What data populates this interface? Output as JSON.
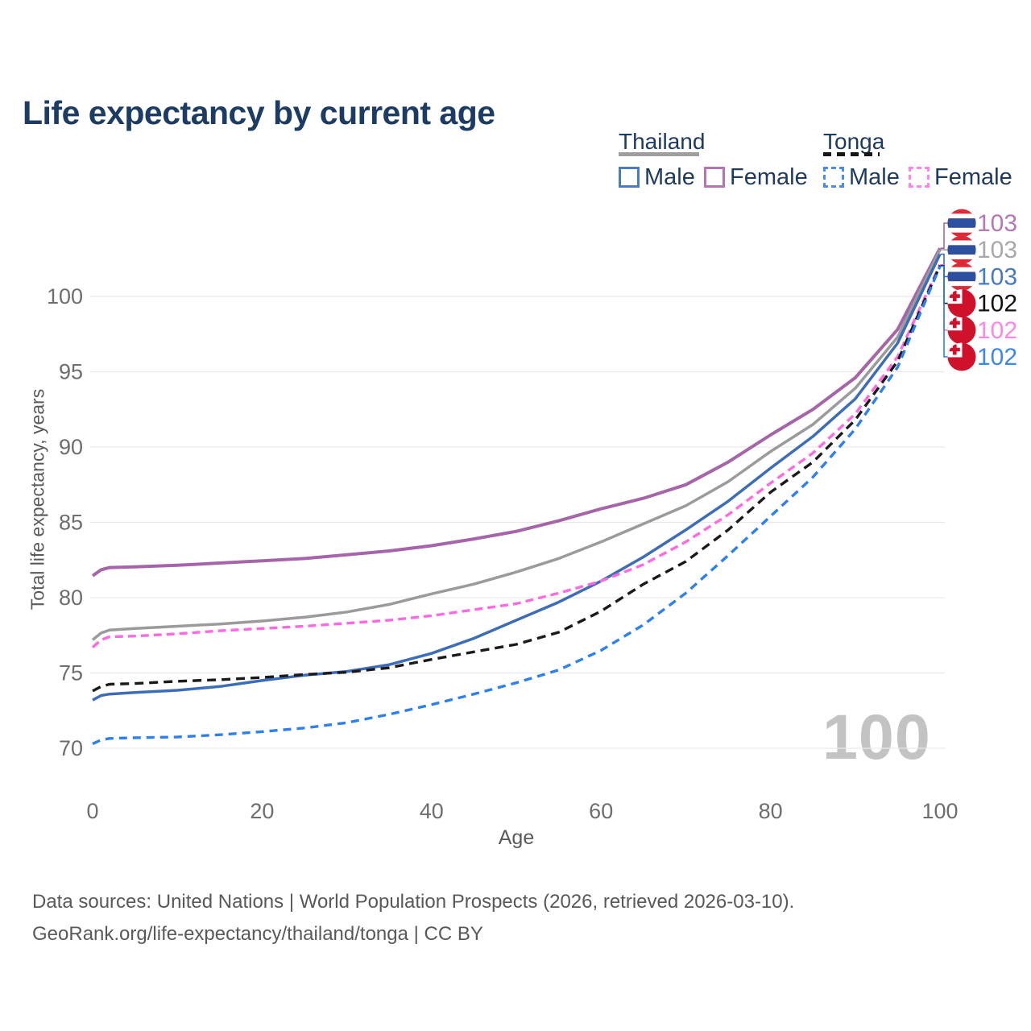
{
  "title": "Life expectancy by current age",
  "legend": {
    "thailand": {
      "label": "Thailand",
      "male": "Male",
      "female": "Female"
    },
    "tonga": {
      "label": "Tonga",
      "male": "Male",
      "female": "Female"
    }
  },
  "watermark": "100",
  "y_axis": {
    "title": "Total life expectancy, years"
  },
  "x_axis": {
    "title": "Age"
  },
  "footer": {
    "line1": "Data sources: United Nations | World Population Prospects (2026, retrieved 2026-03-10).",
    "line2": "GeoRank.org/life-expectancy/thailand/tonga | CC BY"
  },
  "colors": {
    "title_text": "#1d3c63",
    "legend_text": "#1e3a5f",
    "tick_text": "#6e6e6e",
    "gridline": "#e9e9e9",
    "watermark": "#c3c3c3",
    "thailand_flag_red": "#dd2a39",
    "thailand_flag_blue": "#2c4f9f",
    "tonga_flag_red": "#d0112b"
  },
  "chart_data": {
    "type": "line",
    "title": "Life expectancy by current age",
    "xlabel": "Age",
    "ylabel": "Total life expectancy, years",
    "xlim": [
      0,
      100
    ],
    "ylim": [
      68.5,
      104.5
    ],
    "x_ticks": [
      0,
      20,
      40,
      60,
      80,
      100
    ],
    "y_ticks": [
      70,
      75,
      80,
      85,
      90,
      95,
      100
    ],
    "grid": "horizontal",
    "legend_position": "top-right",
    "ages": [
      0,
      1,
      2,
      5,
      10,
      15,
      20,
      25,
      30,
      35,
      40,
      45,
      50,
      55,
      60,
      65,
      70,
      75,
      80,
      85,
      90,
      95,
      100
    ],
    "series": [
      {
        "id": "thailand-female",
        "name": "Thailand Female",
        "country": "Thailand",
        "sex": "Female",
        "style": "solid",
        "color": "#a565a8",
        "label_color": "#b478b4",
        "width": 4,
        "dash": "",
        "end_label": "103",
        "label_row": 0,
        "flag": "thailand",
        "values": [
          81.45,
          81.85,
          82.0,
          82.05,
          82.15,
          82.3,
          82.45,
          82.6,
          82.85,
          83.1,
          83.45,
          83.9,
          84.4,
          85.1,
          85.9,
          86.6,
          87.5,
          89.0,
          90.8,
          92.5,
          94.6,
          97.8,
          103.2
        ]
      },
      {
        "id": "thailand-all",
        "name": "Thailand",
        "country": "Thailand",
        "sex": "All",
        "style": "solid",
        "color": "#9b9b9b",
        "label_color": "#a8a8a8",
        "width": 3.5,
        "dash": "",
        "end_label": "103",
        "label_row": 1,
        "flag": "thailand",
        "values": [
          77.2,
          77.65,
          77.85,
          77.95,
          78.1,
          78.25,
          78.45,
          78.7,
          79.05,
          79.55,
          80.25,
          80.9,
          81.7,
          82.6,
          83.7,
          84.9,
          86.1,
          87.7,
          89.7,
          91.5,
          93.9,
          97.3,
          103.1
        ]
      },
      {
        "id": "thailand-male",
        "name": "Thailand Male",
        "country": "Thailand",
        "sex": "Male",
        "style": "solid",
        "color": "#3e6db7",
        "label_color": "#4579c6",
        "width": 3.5,
        "dash": "",
        "end_label": "103",
        "label_row": 2,
        "flag": "thailand",
        "values": [
          73.2,
          73.5,
          73.6,
          73.7,
          73.85,
          74.1,
          74.5,
          74.85,
          75.1,
          75.55,
          76.3,
          77.3,
          78.5,
          79.7,
          81.1,
          82.7,
          84.5,
          86.4,
          88.6,
          90.7,
          93.2,
          96.9,
          102.8
        ]
      },
      {
        "id": "tonga-female",
        "name": "Tonga Female",
        "country": "Tonga",
        "sex": "Female",
        "style": "dashed",
        "color": "#ff6ae0",
        "label_color": "#ff85e8",
        "width": 3.4,
        "dash": "10 6",
        "end_label": "102",
        "label_row": 4,
        "flag": "tonga",
        "values": [
          76.7,
          77.2,
          77.4,
          77.45,
          77.6,
          77.8,
          77.95,
          78.1,
          78.3,
          78.5,
          78.8,
          79.2,
          79.6,
          80.3,
          81.1,
          82.2,
          83.7,
          85.5,
          87.6,
          89.6,
          92.2,
          96.0,
          102.1
        ]
      },
      {
        "id": "tonga-all",
        "name": "Tonga",
        "country": "Tonga",
        "sex": "All",
        "style": "dashed",
        "color": "#1a1a1a",
        "label_color": "#111111",
        "width": 3.4,
        "dash": "11 7",
        "end_label": "102",
        "label_row": 3,
        "flag": "tonga",
        "values": [
          73.8,
          74.1,
          74.25,
          74.3,
          74.45,
          74.55,
          74.7,
          74.9,
          75.05,
          75.35,
          75.9,
          76.4,
          76.9,
          77.7,
          79.1,
          80.9,
          82.4,
          84.5,
          87.0,
          89.0,
          91.8,
          95.7,
          102.05
        ]
      },
      {
        "id": "tonga-male",
        "name": "Tonga Male",
        "country": "Tonga",
        "sex": "Male",
        "style": "dashed",
        "color": "#2e7ff0",
        "label_color": "#3d87f5",
        "width": 3.4,
        "dash": "10 7",
        "end_label": "102",
        "label_row": 5,
        "flag": "tonga",
        "values": [
          70.3,
          70.55,
          70.65,
          70.7,
          70.75,
          70.9,
          71.1,
          71.35,
          71.7,
          72.25,
          72.9,
          73.6,
          74.35,
          75.2,
          76.5,
          78.2,
          80.3,
          82.8,
          85.4,
          88.0,
          91.2,
          95.3,
          102.0
        ]
      }
    ]
  }
}
